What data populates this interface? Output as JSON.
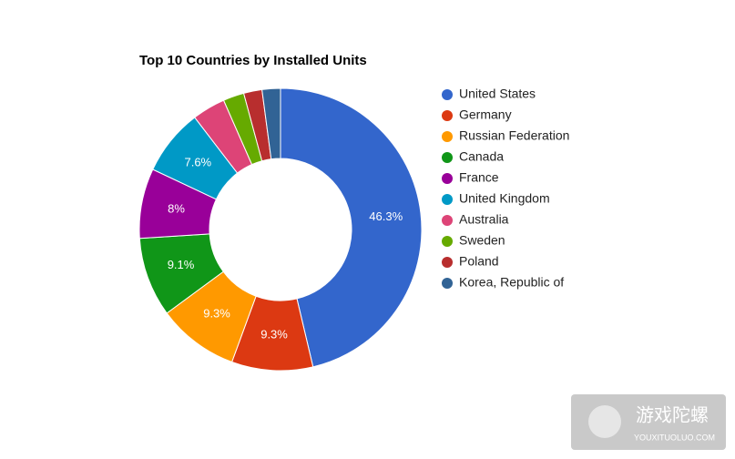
{
  "chart_data": {
    "type": "donut",
    "title": "Top 10 Countries by Installed Units",
    "categories": [
      "United States",
      "Germany",
      "Russian Federation",
      "Canada",
      "France",
      "United Kingdom",
      "Australia",
      "Sweden",
      "Poland",
      "Korea, Republic of"
    ],
    "values": [
      46.3,
      9.3,
      9.3,
      9.1,
      8,
      7.6,
      3.8,
      2.4,
      2.1,
      2.1
    ],
    "value_labels": [
      "46.3%",
      "9.3%",
      "9.3%",
      "9.1%",
      "8%",
      "7.6%",
      null,
      null,
      null,
      null
    ],
    "colors": [
      "#3366cc",
      "#dc3912",
      "#ff9900",
      "#109618",
      "#990099",
      "#0099c6",
      "#dd4477",
      "#66aa00",
      "#b82e2e",
      "#316395"
    ],
    "legend": "right"
  },
  "watermark": {
    "title": "游戏陀螺",
    "subtitle": "YOUXITUOLUO.COM"
  }
}
